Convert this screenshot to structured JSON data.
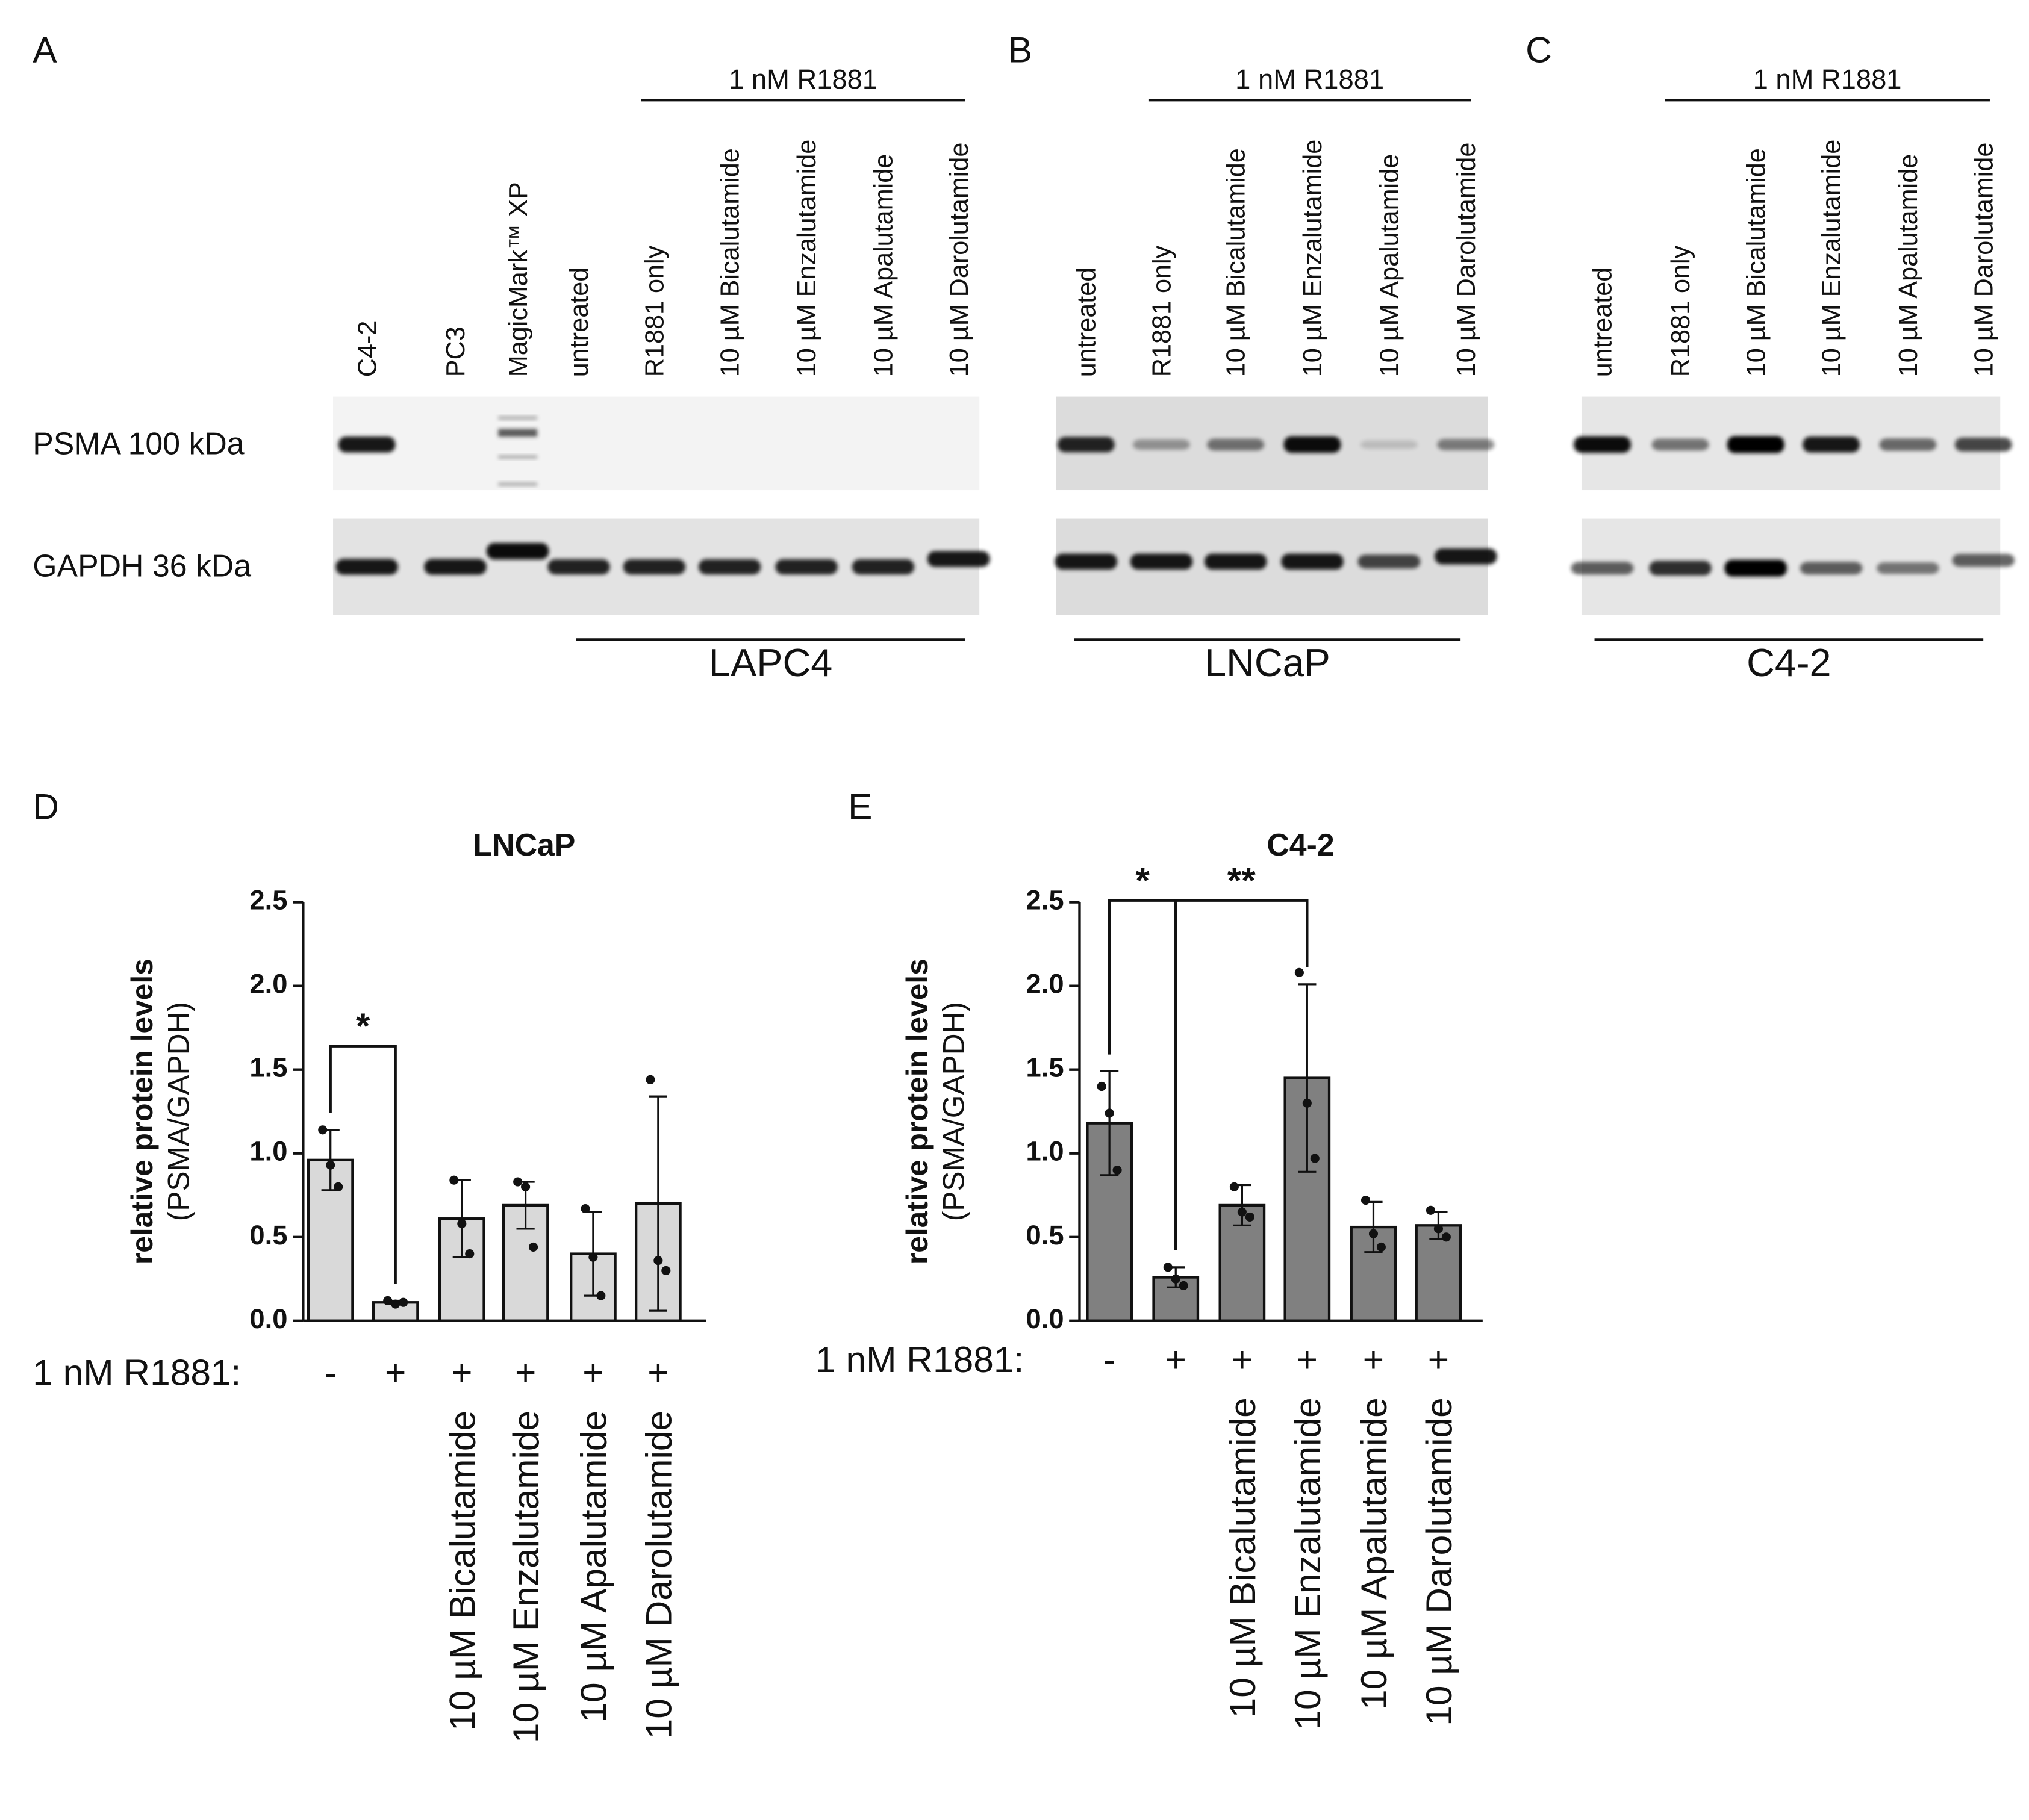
{
  "row_labels": [
    "PSMA 100 kDa",
    "GAPDH 36 kDa"
  ],
  "blots": [
    {
      "letter": "A",
      "treatment_label": "1 nM R1881",
      "lanes": [
        "C4-2",
        "PC3",
        "MagicMark™ XP",
        "untreated",
        "R1881 only",
        "10 µM Bicalutamide",
        "10 µM Enzalutamide",
        "10 µM Apalutamide",
        "10 µM Darolutamide"
      ],
      "cell_line": "LAPC4"
    },
    {
      "letter": "B",
      "treatment_label": "1 nM R1881",
      "lanes": [
        "untreated",
        "R1881 only",
        "10 µM Bicalutamide",
        "10 µM Enzalutamide",
        "10 µM Apalutamide",
        "10 µM Darolutamide"
      ],
      "cell_line": "LNCaP"
    },
    {
      "letter": "C",
      "treatment_label": "1 nM R1881",
      "lanes": [
        "untreated",
        "R1881 only",
        "10 µM Bicalutamide",
        "10 µM Enzalutamide",
        "10 µM Apalutamide",
        "10 µM Darolutamide"
      ],
      "cell_line": "C4-2"
    }
  ],
  "chart_data": [
    {
      "type": "bar",
      "letter": "D",
      "title": "LNCaP",
      "ylabel": "relative protein levels",
      "ylabel_sub": "(PSMA/GAPDH)",
      "row_label": "1 nM R1881:",
      "signs": [
        "-",
        "+",
        "+",
        "+",
        "+",
        "+"
      ],
      "categories": [
        null,
        null,
        "10 µM Bicalutamide",
        "10 µM Enzalutamide",
        "10 µM Apalutamide",
        "10 µM Darolutamide"
      ],
      "series": [
        {
          "color": "#d9d9d9",
          "values": [
            0.96,
            0.11,
            0.61,
            0.69,
            0.4,
            0.7
          ],
          "errors": [
            0.18,
            0.01,
            0.23,
            0.14,
            0.25,
            0.64
          ],
          "points": [
            [
              1.14,
              0.93,
              0.8
            ],
            [
              0.12,
              0.1,
              0.11
            ],
            [
              0.84,
              0.58,
              0.4
            ],
            [
              0.83,
              0.8,
              0.44
            ],
            [
              0.67,
              0.38,
              0.15
            ],
            [
              1.44,
              0.36,
              0.3
            ]
          ]
        }
      ],
      "ylim": [
        0,
        2.5
      ],
      "yticks": [
        {
          "value": 0,
          "label": "0.0"
        },
        0.5,
        {
          "value": 1,
          "label": "1.0"
        },
        1.5,
        {
          "value": 2,
          "label": "2.0"
        },
        2.5
      ],
      "annotations": [
        {
          "from": 0,
          "to": 1,
          "label": "*"
        }
      ]
    },
    {
      "type": "bar",
      "letter": "E",
      "title": "C4-2",
      "ylabel": "relative protein levels",
      "ylabel_sub": "(PSMA/GAPDH)",
      "row_label": "1 nM R1881:",
      "signs": [
        "-",
        "+",
        "+",
        "+",
        "+",
        "+"
      ],
      "categories": [
        null,
        null,
        "10 µM Bicalutamide",
        "10 µM Enzalutamide",
        "10 µM Apalutamide",
        "10 µM Darolutamide"
      ],
      "series": [
        {
          "color": "#808080",
          "values": [
            1.18,
            0.26,
            0.69,
            1.45,
            0.56,
            0.57
          ],
          "errors": [
            0.31,
            0.06,
            0.12,
            0.56,
            0.15,
            0.08
          ],
          "points": [
            [
              1.4,
              1.24,
              0.9
            ],
            [
              0.32,
              0.25,
              0.21
            ],
            [
              0.8,
              0.65,
              0.62
            ],
            [
              2.08,
              1.3,
              0.97
            ],
            [
              0.72,
              0.52,
              0.44
            ],
            [
              0.66,
              0.55,
              0.5
            ]
          ]
        }
      ],
      "ylim": [
        0,
        2.5
      ],
      "yticks": [
        {
          "value": 0,
          "label": "0.0"
        },
        0.5,
        {
          "value": 1,
          "label": "1.0"
        },
        1.5,
        {
          "value": 2,
          "label": "2.0"
        },
        2.5
      ],
      "annotations": [
        {
          "from": 0,
          "to": 1,
          "label": "*"
        },
        {
          "from": 1,
          "to": 3,
          "label": "**"
        }
      ]
    }
  ]
}
